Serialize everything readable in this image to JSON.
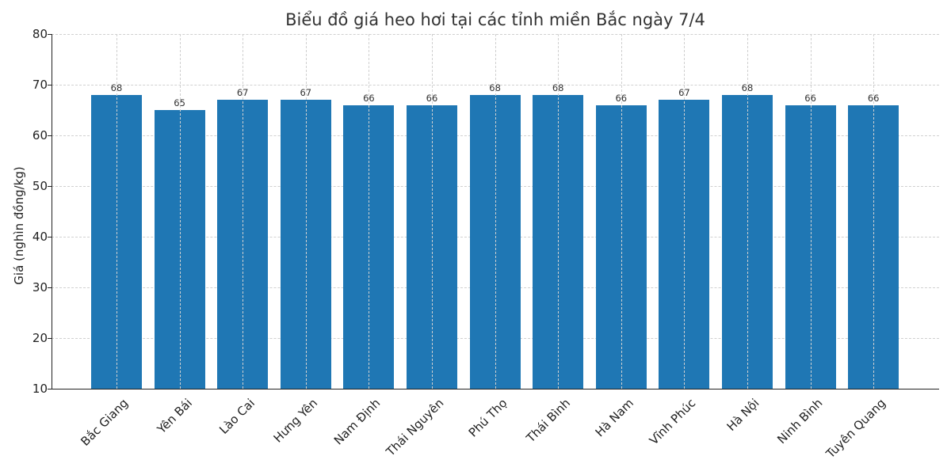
{
  "chart_data": {
    "type": "bar",
    "title": "Biểu đồ giá heo hơi tại các tỉnh miền Bắc ngày 7/4",
    "xlabel": "",
    "ylabel": "Giá (nghìn đồng/kg)",
    "ylim": [
      10,
      80
    ],
    "yticks": [
      10,
      20,
      30,
      40,
      50,
      60,
      70,
      80
    ],
    "grid": true,
    "bar_color": "#1f77b4",
    "categories": [
      "Bắc Giang",
      "Yên Bái",
      "Lào Cai",
      "Hưng Yên",
      "Nam Định",
      "Thái Nguyên",
      "Phú Thọ",
      "Thái Bình",
      "Hà Nam",
      "Vĩnh Phúc",
      "Hà Nội",
      "Ninh Bình",
      "Tuyên Quang"
    ],
    "values": [
      68,
      65,
      67,
      67,
      66,
      66,
      68,
      68,
      66,
      67,
      68,
      66,
      66
    ]
  }
}
